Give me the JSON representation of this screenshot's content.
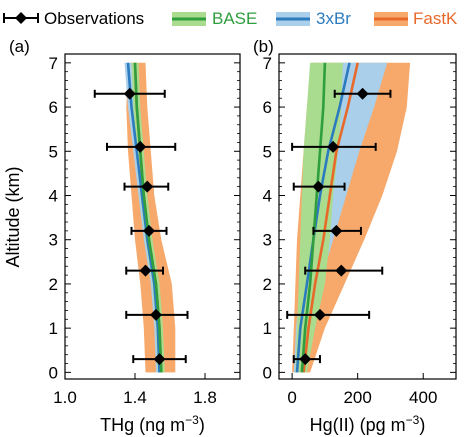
{
  "colors": {
    "obs": "#000000",
    "base_line": "#2e9e3e",
    "base_fill": "#a9dc8e",
    "threexbr_line": "#2c7bbf",
    "threexbr_fill": "#a9cfea",
    "fastk_line": "#e8692a",
    "fastk_fill": "#f7a96b"
  },
  "legend": {
    "obs": "Observations",
    "base": "BASE",
    "threexbr": "3xBr",
    "fastk": "FastK"
  },
  "chart_data": [
    {
      "type": "line",
      "panel": "(a)",
      "xlabel": "THg (ng m⁻³)",
      "xlabel_main": "THg (ng m",
      "xlabel_sup": "−3",
      "xlabel_end": ")",
      "ylabel": "Altitude (km)",
      "xlim": [
        1.0,
        2.0
      ],
      "ylim": [
        -0.15,
        7.2
      ],
      "xticks": [
        1.0,
        1.4,
        1.8
      ],
      "xticklabels": [
        "1.0",
        "1.4",
        "1.8"
      ],
      "yticks": [
        0,
        1,
        2,
        3,
        4,
        5,
        6,
        7
      ],
      "yticklabels": [
        "0",
        "1",
        "2",
        "3",
        "4",
        "5",
        "6",
        "7"
      ],
      "grid": false,
      "observations": [
        {
          "alt": 0.3,
          "value": 1.54,
          "err_low": 1.39,
          "err_high": 1.69
        },
        {
          "alt": 1.3,
          "value": 1.52,
          "err_low": 1.35,
          "err_high": 1.7
        },
        {
          "alt": 2.3,
          "value": 1.46,
          "err_low": 1.35,
          "err_high": 1.56
        },
        {
          "alt": 3.2,
          "value": 1.48,
          "err_low": 1.38,
          "err_high": 1.58
        },
        {
          "alt": 4.2,
          "value": 1.47,
          "err_low": 1.34,
          "err_high": 1.59
        },
        {
          "alt": 5.1,
          "value": 1.43,
          "err_low": 1.24,
          "err_high": 1.63
        },
        {
          "alt": 6.3,
          "value": 1.37,
          "err_low": 1.17,
          "err_high": 1.57
        }
      ],
      "series": [
        {
          "name": "BASE",
          "alt": [
            0,
            1,
            2,
            3,
            4,
            5,
            6,
            7
          ],
          "values": [
            1.55,
            1.54,
            1.52,
            1.48,
            1.45,
            1.43,
            1.41,
            1.4
          ],
          "band_low": [
            1.53,
            1.52,
            1.5,
            1.46,
            1.43,
            1.41,
            1.39,
            1.38
          ],
          "band_high": [
            1.57,
            1.56,
            1.54,
            1.5,
            1.47,
            1.45,
            1.43,
            1.42
          ]
        },
        {
          "name": "3xBr",
          "alt": [
            0,
            1,
            2,
            3,
            4,
            5,
            6,
            7
          ],
          "values": [
            1.54,
            1.53,
            1.51,
            1.47,
            1.44,
            1.41,
            1.38,
            1.36
          ],
          "band_low": [
            1.52,
            1.51,
            1.49,
            1.45,
            1.42,
            1.39,
            1.36,
            1.34
          ],
          "band_high": [
            1.56,
            1.55,
            1.53,
            1.49,
            1.46,
            1.43,
            1.4,
            1.38
          ]
        },
        {
          "name": "FastK",
          "alt": [
            0,
            1,
            2,
            3,
            4,
            5,
            6,
            7
          ],
          "values": [
            1.55,
            1.54,
            1.52,
            1.48,
            1.45,
            1.43,
            1.41,
            1.4
          ],
          "band_low": [
            1.46,
            1.45,
            1.43,
            1.4,
            1.38,
            1.36,
            1.35,
            1.36
          ],
          "band_high": [
            1.63,
            1.63,
            1.61,
            1.55,
            1.51,
            1.49,
            1.47,
            1.46
          ]
        }
      ]
    },
    {
      "type": "line",
      "panel": "(b)",
      "xlabel": "Hg(II) (pg m⁻³)",
      "xlabel_main": "Hg(II) (pg m",
      "xlabel_sup": "−3",
      "xlabel_end": ")",
      "xlim": [
        -40,
        500
      ],
      "ylim": [
        -0.15,
        7.2
      ],
      "xticks": [
        0,
        200,
        400
      ],
      "xticklabels": [
        "0",
        "200",
        "400"
      ],
      "yticks": [
        0,
        1,
        2,
        3,
        4,
        5,
        6,
        7
      ],
      "yticklabels": [
        "0",
        "1",
        "2",
        "3",
        "4",
        "5",
        "6",
        "7"
      ],
      "grid": false,
      "observations": [
        {
          "alt": 0.3,
          "value": 40,
          "err_low": 5,
          "err_high": 85
        },
        {
          "alt": 1.3,
          "value": 85,
          "err_low": -15,
          "err_high": 235
        },
        {
          "alt": 2.3,
          "value": 150,
          "err_low": 40,
          "err_high": 275
        },
        {
          "alt": 3.2,
          "value": 135,
          "err_low": 65,
          "err_high": 210
        },
        {
          "alt": 4.2,
          "value": 80,
          "err_low": 5,
          "err_high": 160
        },
        {
          "alt": 5.1,
          "value": 125,
          "err_low": 0,
          "err_high": 255
        },
        {
          "alt": 6.3,
          "value": 215,
          "err_low": 130,
          "err_high": 300
        }
      ],
      "series": [
        {
          "name": "BASE",
          "alt": [
            0,
            1,
            2,
            3,
            4,
            5,
            6,
            7
          ],
          "values": [
            30,
            40,
            55,
            65,
            75,
            85,
            95,
            100
          ],
          "band_low": [
            10,
            15,
            20,
            25,
            30,
            35,
            45,
            55
          ],
          "band_high": [
            45,
            70,
            100,
            115,
            125,
            140,
            150,
            155
          ]
        },
        {
          "name": "3xBr",
          "alt": [
            0,
            1,
            2,
            3,
            4,
            5,
            6,
            7
          ],
          "values": [
            15,
            25,
            45,
            65,
            85,
            110,
            145,
            175
          ],
          "band_low": [
            5,
            12,
            25,
            40,
            55,
            75,
            100,
            130
          ],
          "band_high": [
            30,
            50,
            85,
            125,
            165,
            205,
            250,
            290
          ]
        },
        {
          "name": "FastK",
          "alt": [
            0,
            1,
            2,
            3,
            4,
            5,
            6,
            7
          ],
          "values": [
            35,
            50,
            70,
            95,
            115,
            135,
            170,
            200
          ],
          "band_low": [
            0,
            5,
            10,
            15,
            25,
            35,
            45,
            60
          ],
          "band_high": [
            55,
            100,
            160,
            220,
            275,
            320,
            350,
            360
          ]
        }
      ]
    }
  ]
}
